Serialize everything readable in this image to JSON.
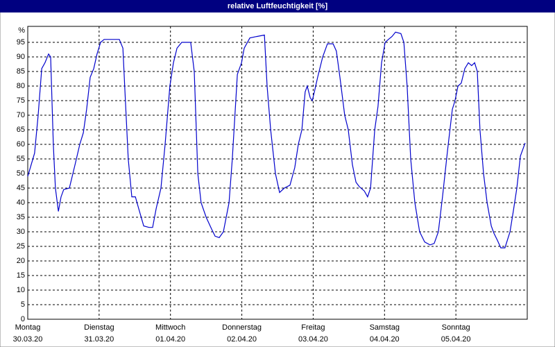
{
  "chart_data": {
    "type": "line",
    "title": "relative Luftfeuchtigkeit [%]",
    "y_label": "%",
    "x": [
      0,
      2.3,
      3.5,
      4.7,
      5.8,
      7,
      7.7,
      8.6,
      9.3,
      10.3,
      11.2,
      12.1,
      14,
      15.9,
      17.5,
      18.7,
      19.8,
      21,
      22.2,
      23.3,
      24.5,
      25.7,
      30.8,
      32,
      32.7,
      33.8,
      35,
      36.2,
      37.3,
      39,
      40.8,
      42,
      43.2,
      44.8,
      46.2,
      47.8,
      49,
      50.2,
      51.8,
      54.8,
      56,
      57.2,
      58.3,
      60,
      61.8,
      63,
      64.4,
      65.8,
      67.7,
      68.8,
      70.5,
      71.9,
      72.8,
      74.7,
      77,
      79.6,
      80.5,
      81.7,
      83.3,
      84.7,
      86.3,
      88.2,
      89.8,
      91,
      92.2,
      93.3,
      94,
      95,
      95.7,
      96.4,
      97.5,
      99.2,
      100.8,
      102.7,
      103.8,
      105,
      106.6,
      107.8,
      109.2,
      110.4,
      111.5,
      113.2,
      114.3,
      115.3,
      116.7,
      117.8,
      119,
      120.2,
      121.3,
      122.5,
      123.7,
      125.5,
      126.5,
      127.6,
      128.8,
      130.2,
      131.8,
      133.5,
      135.3,
      136.7,
      138.1,
      139.5,
      141.2,
      142.8,
      143.7,
      144.7,
      145.8,
      147,
      148.2,
      149.3,
      150.3,
      151.2,
      152.1,
      153.3,
      154.5,
      155.9,
      156.8,
      158,
      159.1,
      160.5,
      162.2,
      163.3,
      164.5,
      165.7,
      167.3
    ],
    "series": [
      {
        "name": "relative Luftfeuchtigkeit",
        "color": "#0000cc",
        "values": [
          49,
          57,
          70,
          86,
          88,
          91,
          90,
          60,
          45,
          37,
          42,
          44.5,
          45,
          53,
          60,
          64,
          72,
          83,
          86,
          91,
          95,
          96,
          96,
          93,
          78,
          55,
          42,
          42,
          38,
          32,
          31.5,
          31.5,
          38,
          45,
          60,
          80,
          88,
          93,
          95,
          95,
          85,
          50,
          40,
          35,
          31,
          28.5,
          28,
          30,
          40,
          55,
          84,
          88,
          93,
          96.5,
          97,
          97.5,
          80,
          65,
          50,
          43.5,
          45,
          46,
          52,
          60,
          65,
          78,
          80,
          76,
          75,
          78,
          83,
          90,
          94.5,
          94.5,
          92,
          83,
          70,
          65,
          53,
          47,
          45.5,
          44,
          42,
          45,
          65,
          73,
          88,
          95,
          96,
          97,
          98.5,
          98,
          95,
          80,
          55,
          40,
          30,
          26.5,
          25.5,
          26,
          30,
          42,
          58,
          72,
          75,
          80,
          81,
          86,
          88,
          87,
          88,
          85,
          65,
          50,
          40,
          32,
          29.5,
          27,
          24.5,
          24.5,
          30,
          37,
          45,
          56,
          60.5
        ]
      }
    ],
    "xlim": [
      0,
      168
    ],
    "xticks": [
      {
        "value": 0,
        "label": "Montag",
        "date": "30.03.20"
      },
      {
        "value": 24,
        "label": "Dienstag",
        "date": "31.03.20"
      },
      {
        "value": 48,
        "label": "Mittwoch",
        "date": "01.04.20"
      },
      {
        "value": 72,
        "label": "Donnerstag",
        "date": "02.04.20"
      },
      {
        "value": 96,
        "label": "Freitag",
        "date": "03.04.20"
      },
      {
        "value": 120,
        "label": "Samstag",
        "date": "04.04.20"
      },
      {
        "value": 144,
        "label": "Sonntag",
        "date": "05.04.20"
      }
    ],
    "ylim": [
      0,
      100
    ],
    "yticks": [
      0,
      5,
      10,
      15,
      20,
      25,
      30,
      35,
      40,
      45,
      50,
      55,
      60,
      65,
      70,
      75,
      80,
      85,
      90,
      95
    ],
    "grid": true
  }
}
